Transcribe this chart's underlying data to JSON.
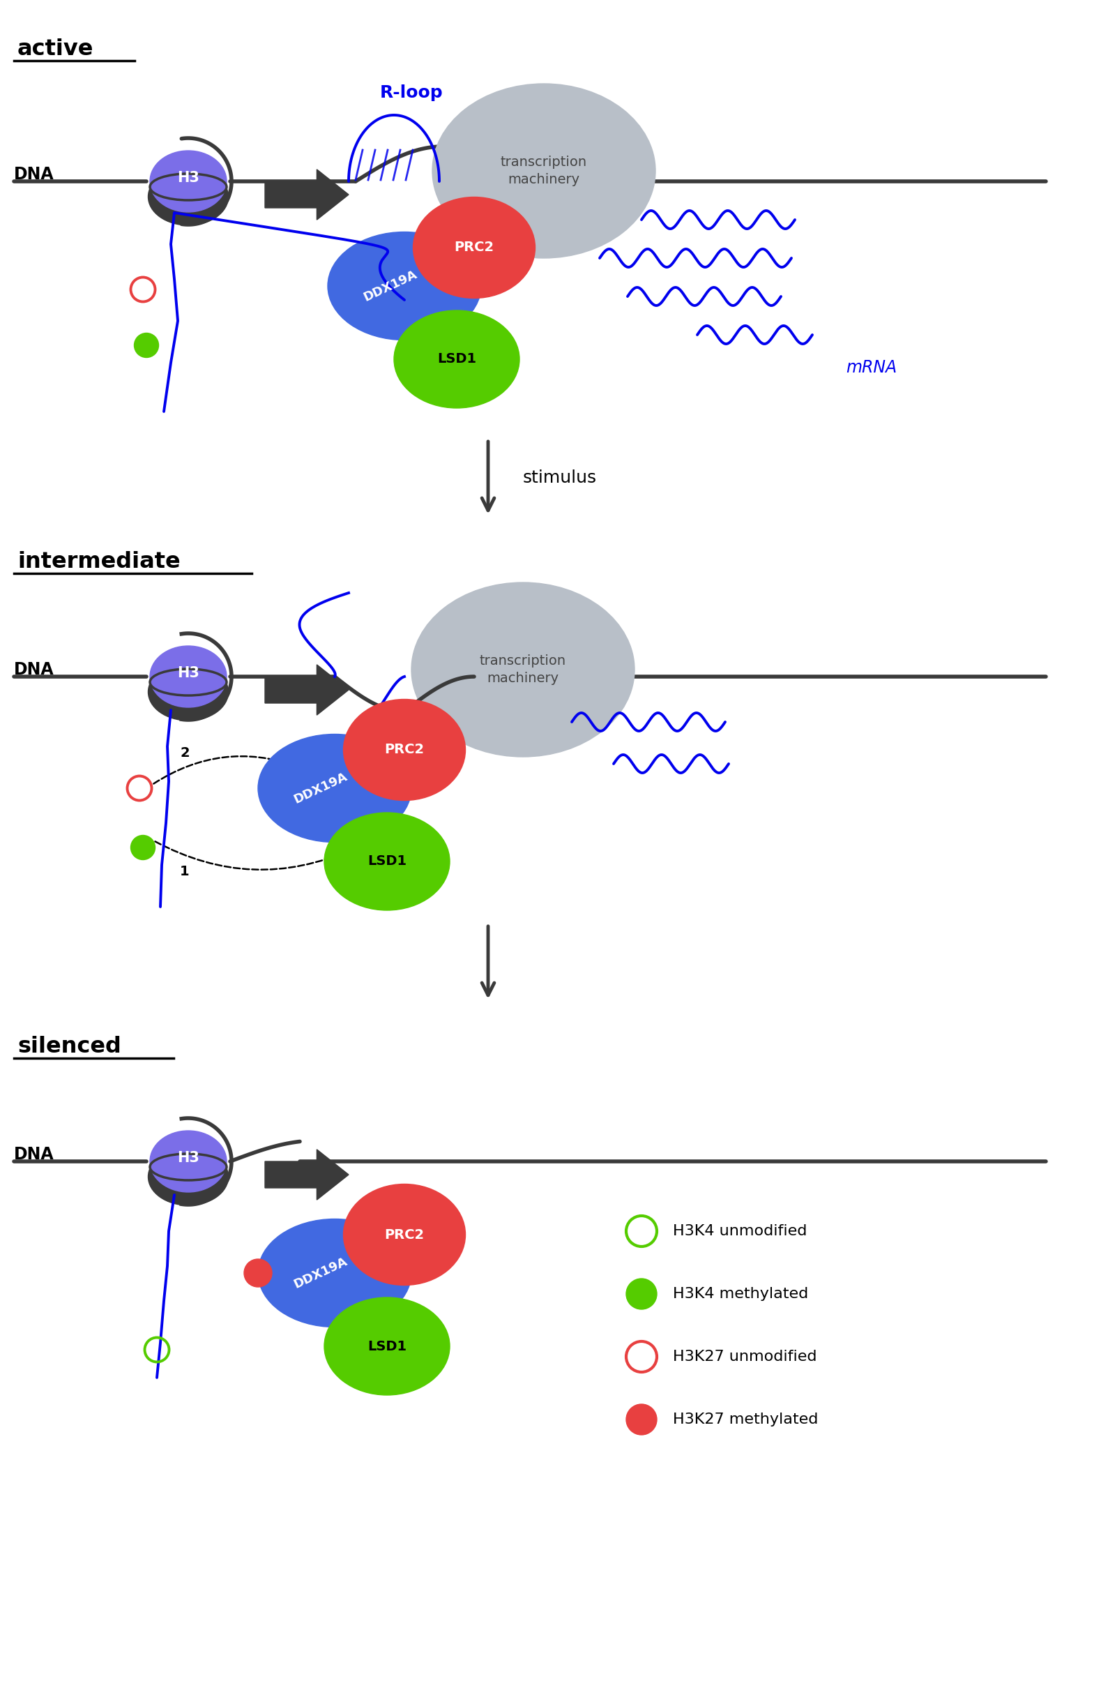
{
  "bg_color": "#ffffff",
  "dna_color": "#3a3a3a",
  "h3_color": "#7b6ee8",
  "h3_dark_color": "#3a3a3a",
  "prc2_color": "#e84040",
  "ddx19a_color": "#4169e1",
  "lsd1_color": "#55cc00",
  "tm_color": "#b8bfc8",
  "rloop_color": "#0000ee",
  "mrna_color": "#0000ee",
  "h3k4_unmod_outline": "#55cc00",
  "h3k4_met_color": "#55cc00",
  "h3k27_unmod_outline": "#e84040",
  "h3k27_met_color": "#e84040",
  "arrow_color": "#3a3a3a",
  "label_active": "active",
  "label_intermediate": "intermediate",
  "label_silenced": "silenced",
  "label_dna": "DNA",
  "label_h3": "H3",
  "label_prc2": "PRC2",
  "label_ddx19a": "DDX19A",
  "label_lsd1": "LSD1",
  "label_tm": "transcription\nmachinery",
  "label_rloop": "R-loop",
  "label_mrna": "mRNA",
  "label_stimulus": "stimulus",
  "legend_h3k4_unmod": "H3K4 unmodified",
  "legend_h3k4_met": "H3K4 methylated",
  "legend_h3k27_unmod": "H3K27 unmodified",
  "legend_h3k27_met": "H3K27 methylated",
  "fig_w": 15.79,
  "fig_h": 24.4
}
